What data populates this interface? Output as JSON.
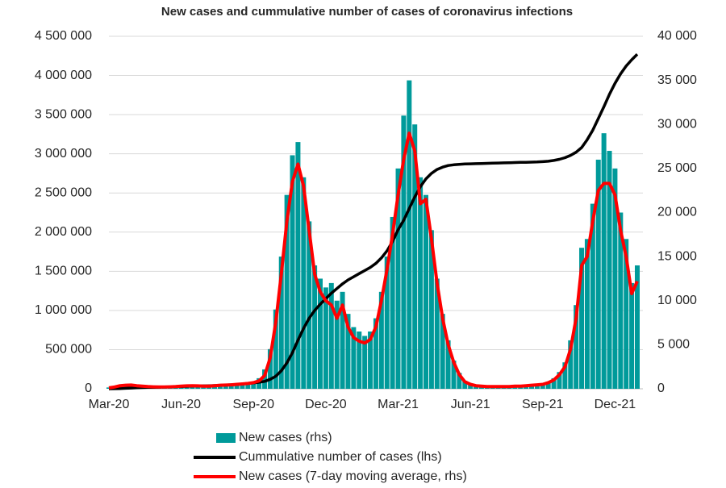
{
  "chart_data": {
    "type": "combo",
    "title": "New cases and cummulative number of cases of coronavirus infections",
    "categories": [
      "Mar-20",
      null,
      null,
      null,
      null,
      null,
      null,
      null,
      null,
      null,
      null,
      null,
      null,
      "Jun-20",
      null,
      null,
      null,
      null,
      null,
      null,
      null,
      null,
      null,
      null,
      null,
      null,
      "Sep-20",
      null,
      null,
      null,
      null,
      null,
      null,
      null,
      null,
      null,
      null,
      null,
      null,
      "Dec-20",
      null,
      null,
      null,
      null,
      null,
      null,
      null,
      null,
      null,
      null,
      null,
      null,
      "Mar-21",
      null,
      null,
      null,
      null,
      null,
      null,
      null,
      null,
      null,
      null,
      null,
      null,
      "Jun-21",
      null,
      null,
      null,
      null,
      null,
      null,
      null,
      null,
      null,
      null,
      null,
      null,
      "Sep-21",
      null,
      null,
      null,
      null,
      null,
      null,
      null,
      null,
      null,
      null,
      null,
      null,
      "Dec-21",
      null,
      null,
      null,
      null
    ],
    "series": [
      {
        "name": "New cases (rhs)",
        "type": "bar",
        "axis": "y2",
        "color": "#009a9a",
        "values": [
          150,
          300,
          400,
          450,
          400,
          350,
          300,
          250,
          200,
          200,
          220,
          250,
          280,
          320,
          350,
          330,
          300,
          300,
          320,
          380,
          420,
          450,
          500,
          550,
          600,
          700,
          800,
          1200,
          2200,
          4500,
          9000,
          15000,
          22000,
          26500,
          28000,
          24000,
          19000,
          14000,
          12500,
          11500,
          12000,
          10000,
          11000,
          8500,
          7000,
          6500,
          6000,
          6500,
          8000,
          11000,
          15000,
          19500,
          25000,
          31000,
          35000,
          30000,
          24000,
          22000,
          18000,
          12500,
          8500,
          5500,
          3200,
          1800,
          900,
          600,
          400,
          350,
          300,
          280,
          280,
          280,
          300,
          320,
          350,
          400,
          450,
          500,
          600,
          800,
          1200,
          1900,
          3000,
          5500,
          9500,
          16000,
          17000,
          21000,
          26000,
          29000,
          27000,
          25000,
          20000,
          17000,
          12000,
          14000
        ]
      },
      {
        "name": "Cummulative number of cases (lhs)",
        "type": "line",
        "axis": "y",
        "color": "#000000",
        "values": [
          0,
          1000,
          3000,
          6000,
          9000,
          12000,
          15000,
          17000,
          19000,
          21000,
          23000,
          25000,
          27000,
          29000,
          31000,
          33000,
          35000,
          37000,
          39000,
          41000,
          44000,
          47000,
          51000,
          56000,
          62000,
          68000,
          75000,
          83000,
          95000,
          120000,
          160000,
          230000,
          330000,
          460000,
          620000,
          770000,
          900000,
          1000000,
          1080000,
          1150000,
          1220000,
          1280000,
          1340000,
          1390000,
          1430000,
          1470000,
          1510000,
          1550000,
          1600000,
          1670000,
          1760000,
          1880000,
          2030000,
          2150000,
          2300000,
          2450000,
          2580000,
          2680000,
          2750000,
          2800000,
          2830000,
          2850000,
          2860000,
          2865000,
          2870000,
          2872000,
          2874000,
          2876000,
          2878000,
          2880000,
          2882000,
          2884000,
          2886000,
          2888000,
          2890000,
          2892000,
          2894000,
          2896000,
          2900000,
          2905000,
          2915000,
          2930000,
          2950000,
          2980000,
          3020000,
          3080000,
          3180000,
          3300000,
          3450000,
          3600000,
          3760000,
          3900000,
          4020000,
          4120000,
          4200000,
          4270000
        ]
      },
      {
        "name": "New cases (7-day moving average, rhs)",
        "type": "line",
        "axis": "y2",
        "color": "#ff0000",
        "values": [
          100,
          200,
          350,
          400,
          420,
          350,
          300,
          250,
          220,
          200,
          200,
          220,
          250,
          300,
          330,
          350,
          330,
          300,
          300,
          350,
          400,
          420,
          450,
          500,
          550,
          600,
          700,
          900,
          1500,
          3500,
          7500,
          13000,
          19000,
          23500,
          25500,
          23000,
          18000,
          13000,
          11000,
          10000,
          9500,
          8000,
          9500,
          7000,
          5800,
          5400,
          5200,
          5600,
          7000,
          10000,
          13500,
          17500,
          22000,
          26000,
          29000,
          27000,
          21000,
          21500,
          17000,
          12000,
          8000,
          5000,
          3000,
          1600,
          800,
          500,
          350,
          300,
          250,
          250,
          250,
          250,
          250,
          300,
          300,
          350,
          400,
          450,
          500,
          700,
          1000,
          1600,
          2500,
          4500,
          8000,
          14000,
          15000,
          19000,
          22500,
          23300,
          23300,
          22000,
          18000,
          15000,
          10800,
          12200
        ]
      }
    ],
    "ylim": [
      0,
      4500000
    ],
    "yticks": [
      0,
      {
        "value": 500000,
        "label": "500 000"
      },
      {
        "value": 1000000,
        "label": "1 000 000"
      },
      {
        "value": 1500000,
        "label": "1 500 000"
      },
      {
        "value": 2000000,
        "label": "2 000 000"
      },
      {
        "value": 2500000,
        "label": "2 500 000"
      },
      {
        "value": 3000000,
        "label": "3 000 000"
      },
      {
        "value": 3500000,
        "label": "3 500 000"
      },
      {
        "value": 4000000,
        "label": "4 000 000"
      },
      {
        "value": 4500000,
        "label": "4 500 000"
      }
    ],
    "y2lim": [
      0,
      40000
    ],
    "y2ticks": [
      0,
      {
        "value": 5000,
        "label": "5 000"
      },
      {
        "value": 10000,
        "label": "10 000"
      },
      {
        "value": 15000,
        "label": "15 000"
      },
      {
        "value": 20000,
        "label": "20 000"
      },
      {
        "value": 25000,
        "label": "25 000"
      },
      {
        "value": 30000,
        "label": "30 000"
      },
      {
        "value": 35000,
        "label": "35 000"
      },
      {
        "value": 40000,
        "label": "40 000"
      }
    ],
    "grid": true,
    "legend": "bottom"
  }
}
